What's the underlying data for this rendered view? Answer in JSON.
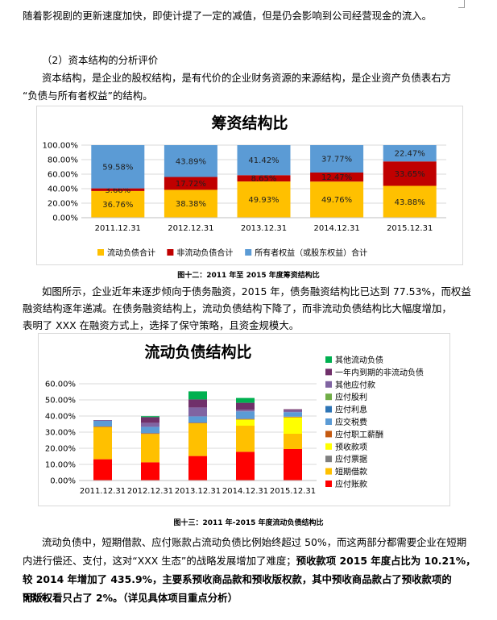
{
  "doc": {
    "line_top": "随着影视剧的更新速度加快，即使计提了一定的减值，但是仍会影响到公司经营现金的流入。",
    "section_heading": "（2）资本结构的分析评价",
    "para1_line1": "资本结构，是企业的股权结构，是有代价的企业财务资源的来源结构，是企业资产负债表右方",
    "para1_line2": "“负债与所有者权益”的结构。",
    "caption1": "图十二：2011 年至 2015 年度筹资结构比",
    "para2_line1": "如图所示，企业近年来逐步倾向于债务融资，2015 年，债务融资结构比已达到 77.53%，而权益",
    "para2_line2": "融资结构逐年递减。在债务融资结构上，流动负债结构下降了，而非流动负债结构比大幅度增加，",
    "para2_line3": "表明了 XXX 在融资方式上，选择了保守策略，且资金规模大。",
    "caption2": "图十三：2011 年-2015 年度流动负债结构比",
    "para3_line1": "流动负债中，短期借款、应付账款占流动负债比例始终超过 50%，而这两部分都需要企业在短期",
    "para3_line2a": "内进行偿还、支付，这对“XXX 生态”的战略发展增加了难度；",
    "para3_line2b": "预收款项 2015 年度占比为 10.21%，",
    "para3_line3": "较 2014 年增加了 435.9%，主要系预收商品款和预收版权款，其中预收商品款占了预收款项的 98%，",
    "para3_line4": "而版权看只占了 2%。（详见具体项目重点分析）"
  },
  "chart_data": [
    {
      "type": "bar",
      "stacked": true,
      "title": "筹资结构比",
      "categories": [
        "2011.12.31",
        "2012.12.31",
        "2013.12.31",
        "2014.12.31",
        "2015.12.31"
      ],
      "series": [
        {
          "name": "流动负债合计",
          "color": "#ffc000",
          "values": [
            36.76,
            38.38,
            49.93,
            49.76,
            43.88
          ],
          "labels": [
            "36.76%",
            "38.38%",
            "49.93%",
            "49.76%",
            "43.88%"
          ]
        },
        {
          "name": "非流动负债合计",
          "color": "#c00000",
          "values": [
            3.66,
            17.72,
            8.65,
            12.47,
            33.65
          ],
          "labels": [
            "3.66%",
            "17.72%",
            "8.65%",
            "12.47%",
            "33.65%"
          ]
        },
        {
          "name": "所有者权益（或股东权益）合计",
          "color": "#5b9bd5",
          "values": [
            59.58,
            43.89,
            41.42,
            37.77,
            22.47
          ],
          "labels": [
            "59.58%",
            "43.89%",
            "41.42%",
            "37.77%",
            "22.47%"
          ]
        }
      ],
      "yticks": [
        "0.00%",
        "20.00%",
        "40.00%",
        "60.00%",
        "80.00%",
        "100.00%"
      ],
      "ylim": [
        0,
        100
      ],
      "legend": "bottom",
      "grid": true
    },
    {
      "type": "bar",
      "stacked": true,
      "title": "流动负债结构比",
      "categories": [
        "2011.12.31",
        "2012.12.31",
        "2013.12.31",
        "2014.12.31",
        "2015.12.31"
      ],
      "series": [
        {
          "name": "应付账款",
          "color": "#ff0000",
          "values": [
            13.2,
            11.3,
            15.2,
            17.8,
            19.5
          ]
        },
        {
          "name": "短期借款",
          "color": "#ffc000",
          "values": [
            20.0,
            17.6,
            20.3,
            16.2,
            9.5
          ]
        },
        {
          "name": "应付票据",
          "color": "#7f7f7f",
          "values": [
            0,
            0,
            0,
            0,
            0
          ]
        },
        {
          "name": "预收款项",
          "color": "#ffff00",
          "values": [
            0,
            0,
            0,
            3.8,
            10.2
          ]
        },
        {
          "name": "应付职工薪酬",
          "color": "#c55a11",
          "values": [
            0.3,
            0.4,
            0.3,
            0.4,
            0.4
          ]
        },
        {
          "name": "应交税费",
          "color": "#5b9bd5",
          "values": [
            3.5,
            4.0,
            4.0,
            4.7,
            2.8
          ]
        },
        {
          "name": "应付利息",
          "color": "#2e75b6",
          "values": [
            0,
            0,
            0,
            0,
            0
          ]
        },
        {
          "name": "应付股利",
          "color": "#70ad47",
          "values": [
            0,
            0,
            0,
            0,
            0
          ]
        },
        {
          "name": "其他应付款",
          "color": "#8064a2",
          "values": [
            0.5,
            2.5,
            5.5,
            1.0,
            1.2
          ]
        },
        {
          "name": "一年内到期的非流动负债",
          "color": "#70306a",
          "values": [
            0,
            3.5,
            5.0,
            4.3,
            0.6
          ]
        },
        {
          "name": "其他流动负债",
          "color": "#00b050",
          "values": [
            0,
            0.6,
            5.0,
            3.0,
            0
          ]
        }
      ],
      "yticks": [
        "0.00%",
        "10.00%",
        "20.00%",
        "30.00%",
        "40.00%",
        "50.00%",
        "60.00%"
      ],
      "ylim": [
        0,
        60
      ],
      "legend": "right",
      "grid": true
    }
  ]
}
